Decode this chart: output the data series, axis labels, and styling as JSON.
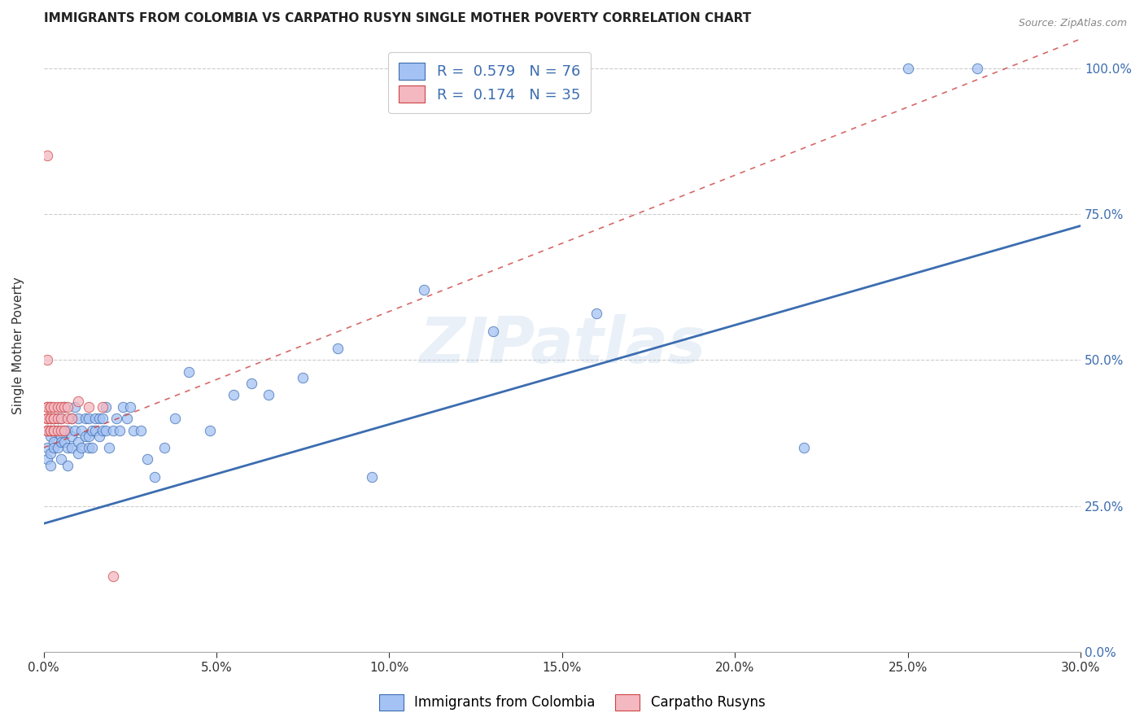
{
  "title": "IMMIGRANTS FROM COLOMBIA VS CARPATHO RUSYN SINGLE MOTHER POVERTY CORRELATION CHART",
  "source": "Source: ZipAtlas.com",
  "ylabel": "Single Mother Poverty",
  "r_colombia": 0.579,
  "n_colombia": 76,
  "r_carpatho": 0.174,
  "n_carpatho": 35,
  "color_colombia": "#a4c2f4",
  "color_carpatho": "#f4b8c1",
  "trendline_colombia": "#3c6db0",
  "trendline_carpatho": "#cc4444",
  "watermark": "ZIPatlas",
  "xlim": [
    0.0,
    0.3
  ],
  "ylim": [
    0.0,
    1.05
  ],
  "xticks": [
    0.0,
    0.05,
    0.1,
    0.15,
    0.2,
    0.25,
    0.3
  ],
  "yticks": [
    0.0,
    0.25,
    0.5,
    0.75,
    1.0
  ],
  "legend_label_color": "#3c6db0",
  "colombia_x": [
    0.001,
    0.001,
    0.001,
    0.002,
    0.002,
    0.002,
    0.002,
    0.003,
    0.003,
    0.003,
    0.003,
    0.004,
    0.004,
    0.004,
    0.005,
    0.005,
    0.005,
    0.005,
    0.006,
    0.006,
    0.006,
    0.007,
    0.007,
    0.007,
    0.008,
    0.008,
    0.008,
    0.009,
    0.009,
    0.01,
    0.01,
    0.01,
    0.011,
    0.011,
    0.012,
    0.012,
    0.013,
    0.013,
    0.013,
    0.014,
    0.014,
    0.015,
    0.015,
    0.016,
    0.016,
    0.017,
    0.017,
    0.018,
    0.018,
    0.019,
    0.02,
    0.021,
    0.022,
    0.023,
    0.024,
    0.025,
    0.026,
    0.028,
    0.03,
    0.032,
    0.035,
    0.038,
    0.042,
    0.048,
    0.055,
    0.06,
    0.065,
    0.075,
    0.085,
    0.095,
    0.11,
    0.13,
    0.16,
    0.22,
    0.25,
    0.27
  ],
  "colombia_y": [
    0.35,
    0.38,
    0.33,
    0.37,
    0.34,
    0.32,
    0.38,
    0.4,
    0.36,
    0.38,
    0.35,
    0.4,
    0.38,
    0.35,
    0.37,
    0.4,
    0.36,
    0.33,
    0.38,
    0.42,
    0.36,
    0.38,
    0.35,
    0.32,
    0.4,
    0.37,
    0.35,
    0.42,
    0.38,
    0.4,
    0.36,
    0.34,
    0.38,
    0.35,
    0.4,
    0.37,
    0.4,
    0.37,
    0.35,
    0.38,
    0.35,
    0.4,
    0.38,
    0.4,
    0.37,
    0.4,
    0.38,
    0.42,
    0.38,
    0.35,
    0.38,
    0.4,
    0.38,
    0.42,
    0.4,
    0.42,
    0.38,
    0.38,
    0.33,
    0.3,
    0.35,
    0.4,
    0.48,
    0.38,
    0.44,
    0.46,
    0.44,
    0.47,
    0.52,
    0.3,
    0.62,
    0.55,
    0.58,
    0.35,
    1.0,
    1.0
  ],
  "carpatho_x": [
    0.001,
    0.001,
    0.001,
    0.001,
    0.001,
    0.001,
    0.001,
    0.001,
    0.001,
    0.002,
    0.002,
    0.002,
    0.002,
    0.002,
    0.002,
    0.003,
    0.003,
    0.003,
    0.003,
    0.003,
    0.004,
    0.004,
    0.004,
    0.005,
    0.005,
    0.005,
    0.006,
    0.006,
    0.007,
    0.007,
    0.008,
    0.01,
    0.013,
    0.017,
    0.02
  ],
  "carpatho_y": [
    0.4,
    0.42,
    0.4,
    0.38,
    0.42,
    0.4,
    0.38,
    0.85,
    0.5,
    0.4,
    0.42,
    0.38,
    0.4,
    0.42,
    0.38,
    0.4,
    0.42,
    0.38,
    0.4,
    0.38,
    0.42,
    0.4,
    0.38,
    0.42,
    0.4,
    0.38,
    0.42,
    0.38,
    0.42,
    0.4,
    0.4,
    0.43,
    0.42,
    0.42,
    0.13
  ],
  "col_trendline_x": [
    0.0,
    0.3
  ],
  "col_trendline_y": [
    0.22,
    0.73
  ],
  "car_trendline_x": [
    0.0,
    0.3
  ],
  "car_trendline_y": [
    0.35,
    1.05
  ]
}
